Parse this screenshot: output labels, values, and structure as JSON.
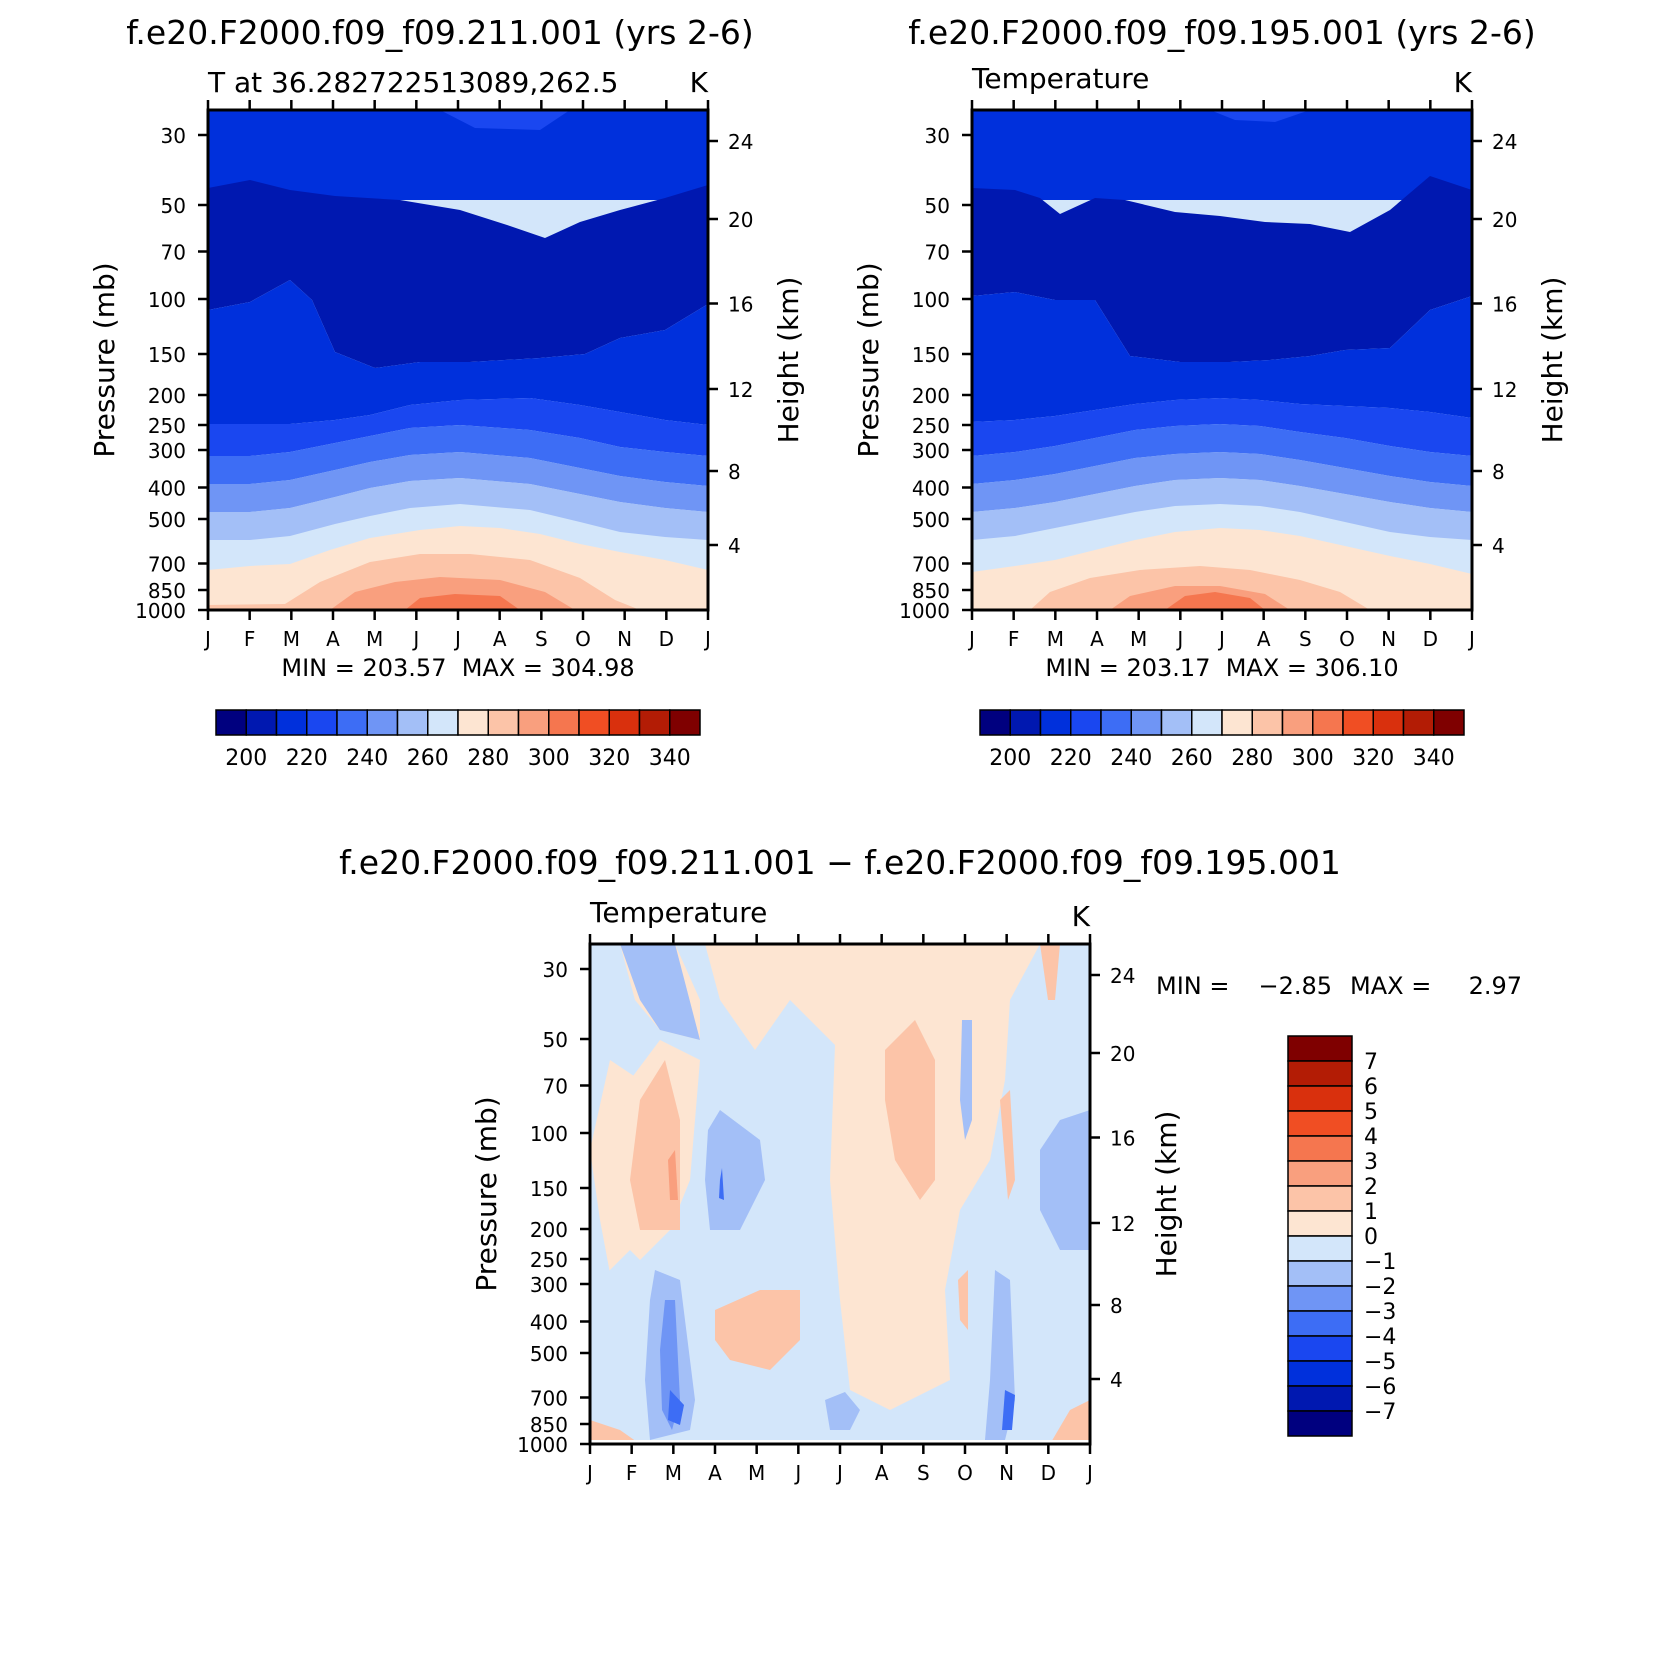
{
  "palette": {
    "absolute": [
      "#00007f",
      "#0018b0",
      "#0030dc",
      "#1a47f0",
      "#3d6df5",
      "#6f95f5",
      "#a3bff7",
      "#d3e6fa",
      "#fde5d2",
      "#fcc4a8",
      "#f99f7e",
      "#f5764f",
      "#f04e23",
      "#d9300d",
      "#b31c05",
      "#7f0000"
    ],
    "difference": [
      "#00007f",
      "#0018b0",
      "#0030dc",
      "#1a47f0",
      "#3d6df5",
      "#6f95f5",
      "#a3bff7",
      "#d3e6fa",
      "#fde5d2",
      "#fcc4a8",
      "#f99f7e",
      "#f5764f",
      "#f04e23",
      "#d9300d",
      "#b31c05",
      "#7f0000"
    ]
  },
  "chart_data": [
    {
      "type": "heatmap",
      "title": "f.e20.F2000.f09_f09.211.001 (yrs 2-6)",
      "subtitle_left": "T at 36.282722513089,262.5",
      "subtitle_right": "K",
      "ylabel": "Pressure (mb)",
      "ylabel_right": "Height (km)",
      "x_ticks": [
        "J",
        "F",
        "M",
        "A",
        "M",
        "J",
        "J",
        "A",
        "S",
        "O",
        "N",
        "D",
        "J"
      ],
      "y_ticks": [
        "30",
        "50",
        "70",
        "100",
        "150",
        "200",
        "250",
        "300",
        "400",
        "500",
        "700",
        "850",
        "1000"
      ],
      "y_ticks_right": [
        "24",
        "20",
        "16",
        "12",
        "8",
        "4"
      ],
      "stats": "MIN = 203.57  MAX = 304.98",
      "min": 203.57,
      "max": 304.98,
      "colorbar_labels": [
        "200",
        "220",
        "240",
        "260",
        "280",
        "300",
        "320",
        "340"
      ],
      "contour_levels": [
        195,
        200,
        205,
        210,
        215,
        220,
        225,
        230,
        235,
        240,
        245,
        250,
        255,
        260,
        265,
        270,
        275,
        280,
        285,
        290,
        295,
        300,
        305,
        310,
        315,
        320,
        325,
        330,
        335,
        340,
        345
      ]
    },
    {
      "type": "heatmap",
      "title": "f.e20.F2000.f09_f09.195.001 (yrs 2-6)",
      "subtitle_left": "Temperature",
      "subtitle_right": "K",
      "ylabel": "Pressure (mb)",
      "ylabel_right": "Height (km)",
      "x_ticks": [
        "J",
        "F",
        "M",
        "A",
        "M",
        "J",
        "J",
        "A",
        "S",
        "O",
        "N",
        "D",
        "J"
      ],
      "y_ticks": [
        "30",
        "50",
        "70",
        "100",
        "150",
        "200",
        "250",
        "300",
        "400",
        "500",
        "700",
        "850",
        "1000"
      ],
      "y_ticks_right": [
        "24",
        "20",
        "16",
        "12",
        "8",
        "4"
      ],
      "stats": "MIN = 203.17  MAX = 306.10",
      "min": 203.17,
      "max": 306.1,
      "colorbar_labels": [
        "200",
        "220",
        "240",
        "260",
        "280",
        "300",
        "320",
        "340"
      ]
    },
    {
      "type": "heatmap",
      "title": "f.e20.F2000.f09_f09.211.001 − f.e20.F2000.f09_f09.195.001",
      "subtitle_left": "Temperature",
      "subtitle_right": "K",
      "ylabel": "Pressure (mb)",
      "ylabel_right": "Height (km)",
      "x_ticks": [
        "J",
        "F",
        "M",
        "A",
        "M",
        "J",
        "J",
        "A",
        "S",
        "O",
        "N",
        "D",
        "J"
      ],
      "y_ticks": [
        "30",
        "50",
        "70",
        "100",
        "150",
        "200",
        "250",
        "300",
        "400",
        "500",
        "700",
        "850",
        "1000"
      ],
      "y_ticks_right": [
        "24",
        "20",
        "16",
        "12",
        "8",
        "4"
      ],
      "stats_min_label": "MIN =",
      "stats_min": "−2.85",
      "stats_max_label": "MAX =",
      "stats_max": "2.97",
      "min": -2.85,
      "max": 2.97,
      "colorbar_labels": [
        "7",
        "6",
        "5",
        "4",
        "3",
        "2",
        "1",
        "0",
        "−1",
        "−2",
        "−3",
        "−4",
        "−5",
        "−6",
        "−7"
      ]
    }
  ]
}
